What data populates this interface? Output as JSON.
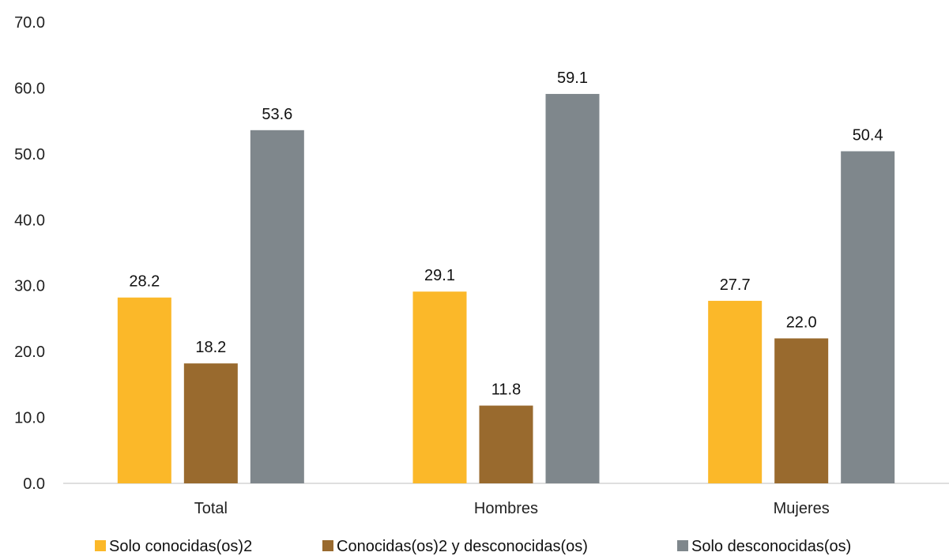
{
  "chart_data": {
    "type": "bar",
    "categories": [
      "Total",
      "Hombres",
      "Mujeres"
    ],
    "series": [
      {
        "name": "Solo conocidas(os)2",
        "color": "#FBB829",
        "values": [
          28.2,
          29.1,
          27.7
        ]
      },
      {
        "name": "Conocidas(os)2 y desconocidas(os)",
        "color": "#996A2E",
        "values": [
          18.2,
          11.8,
          22.0
        ]
      },
      {
        "name": "Solo desconocidas(os)",
        "color": "#7F878C",
        "values": [
          53.6,
          59.1,
          50.4
        ]
      }
    ],
    "ylim": [
      0,
      70
    ],
    "yticks": [
      "0.0",
      "10.0",
      "20.0",
      "30.0",
      "40.0",
      "50.0",
      "60.0",
      "70.0"
    ],
    "data_labels": [
      [
        "28.2",
        "29.1",
        "27.7"
      ],
      [
        "18.2",
        "11.8",
        "22.0"
      ],
      [
        "53.6",
        "59.1",
        "50.4"
      ]
    ],
    "grid": false,
    "legend_position": "bottom"
  }
}
